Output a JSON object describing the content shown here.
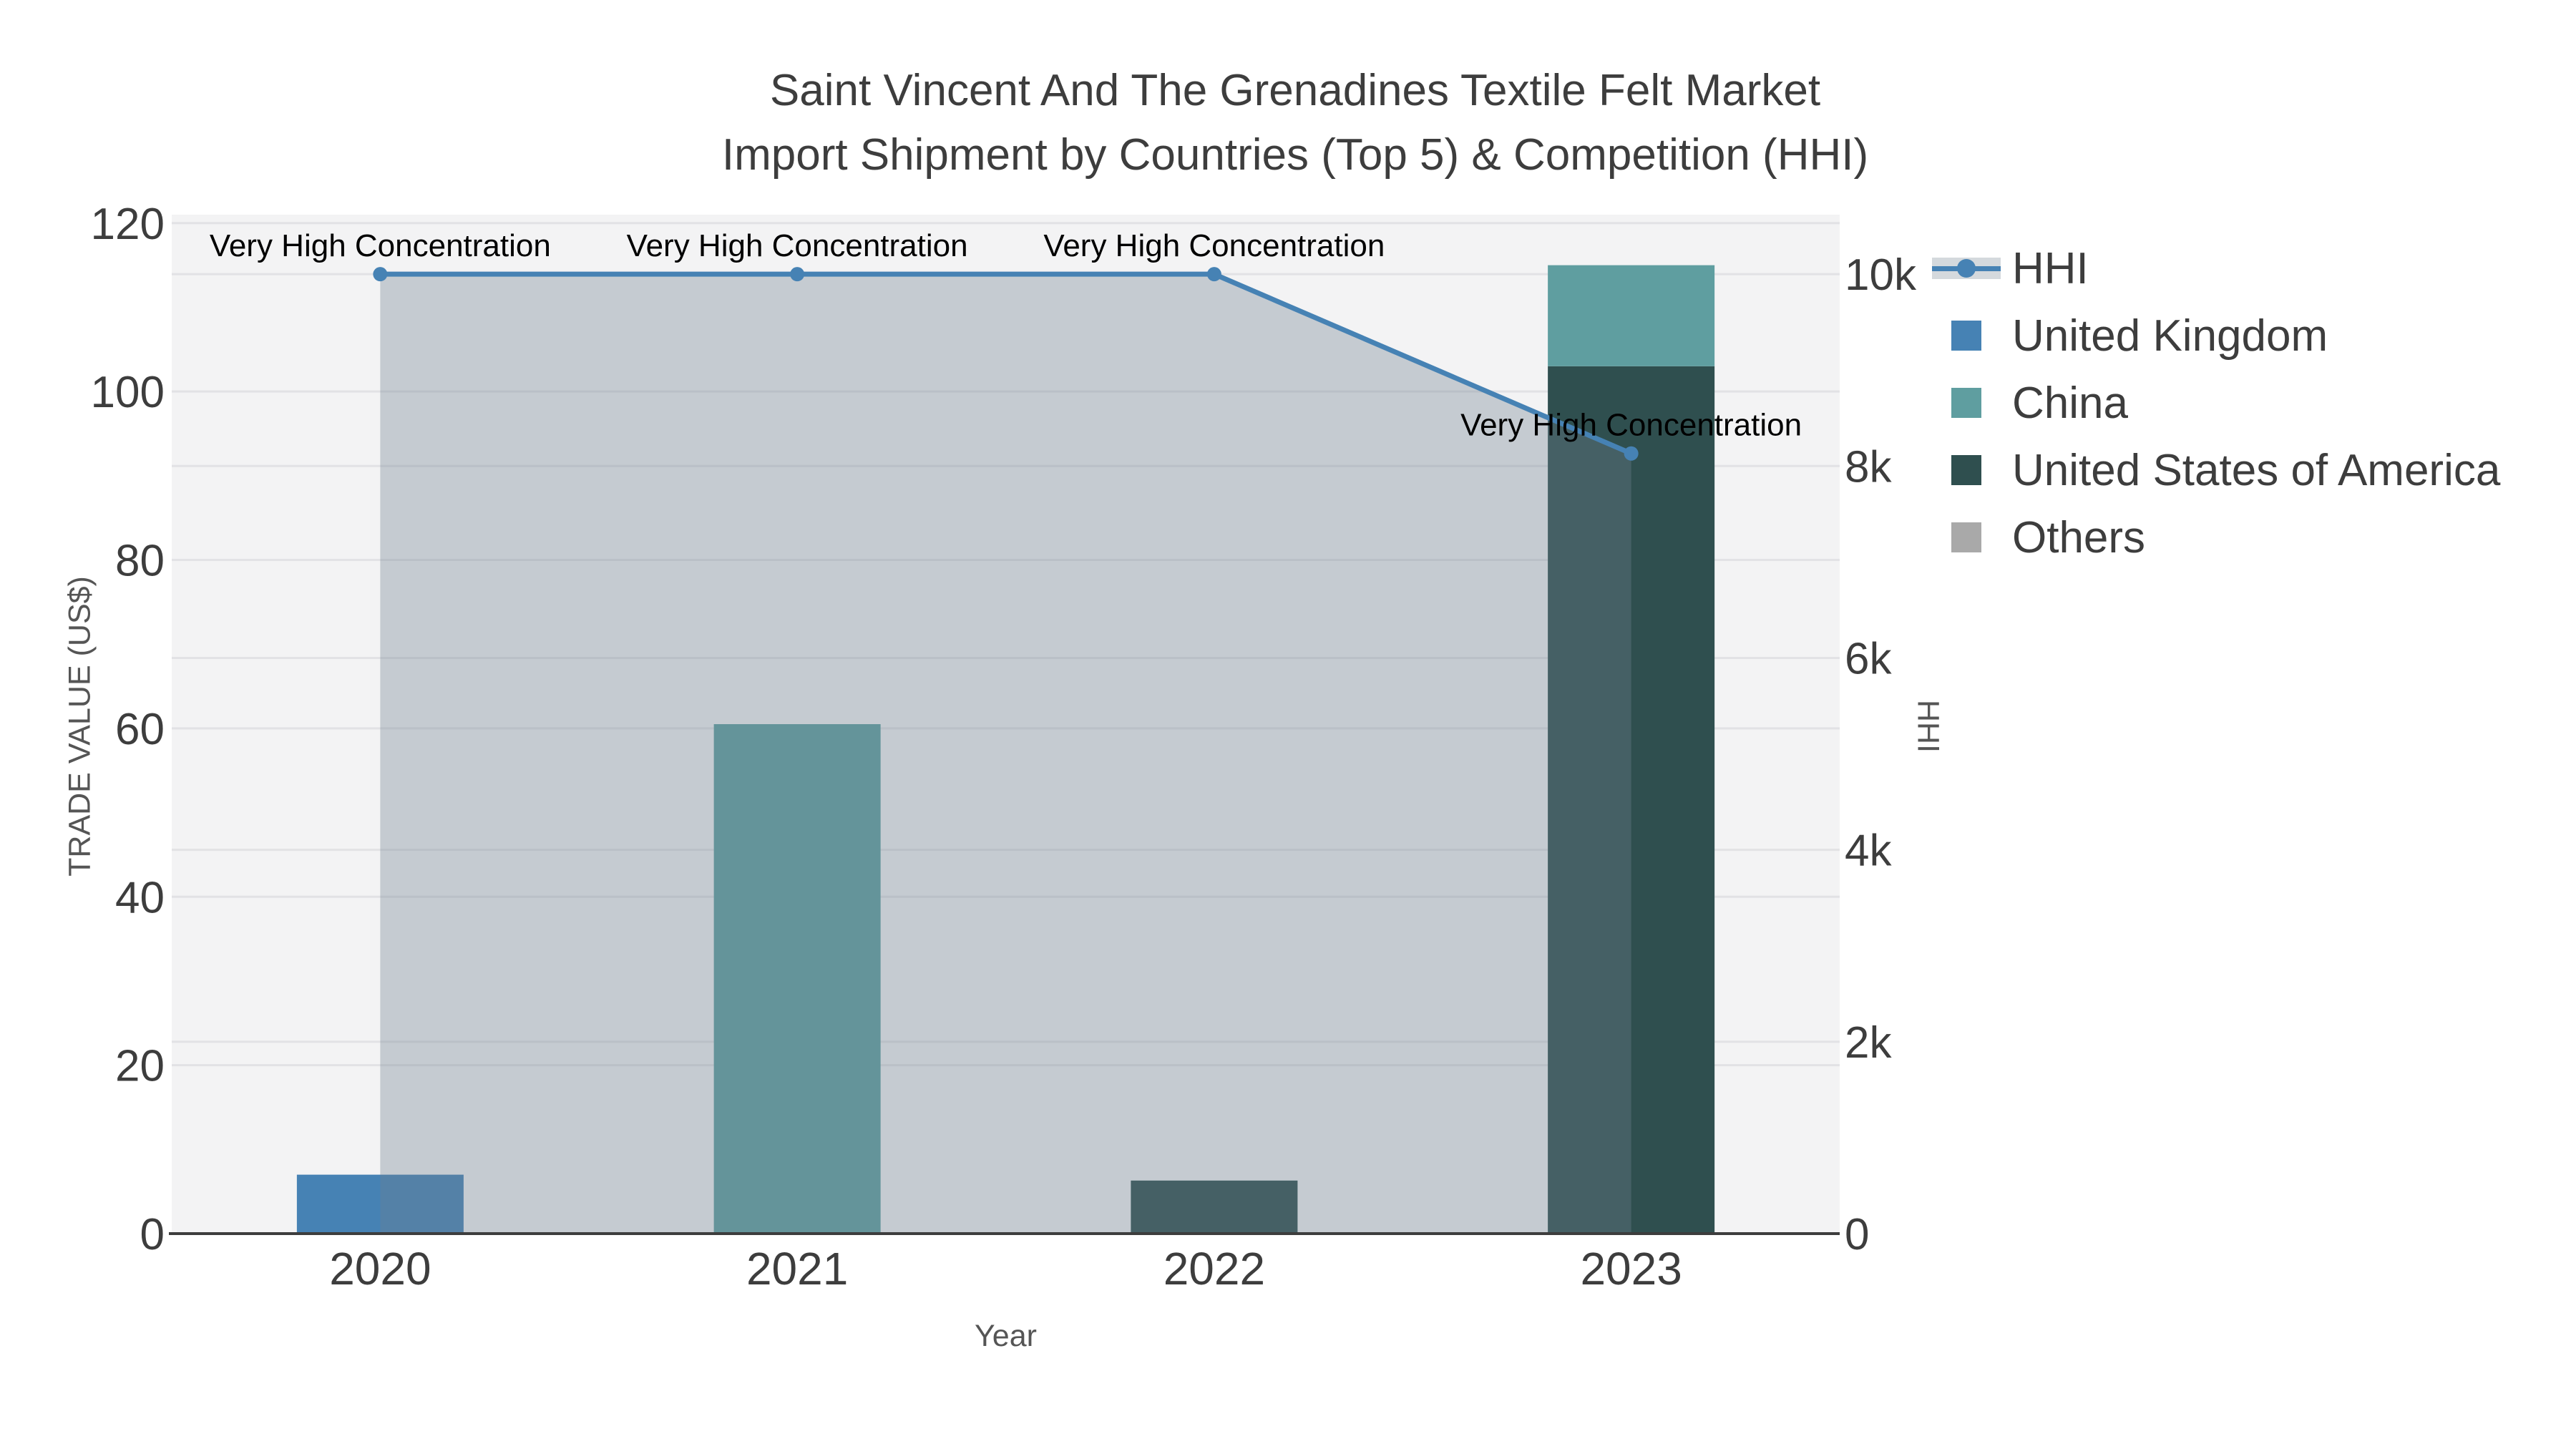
{
  "title": {
    "line1": "Saint Vincent And The Grenadines Textile Felt Market",
    "line2": "Import Shipment by Countries (Top 5) & Competition (HHI)"
  },
  "chart_data": {
    "type": "bar",
    "variant": "stacked-bars-with-line-on-secondary-axis",
    "categories": [
      "2020",
      "2021",
      "2022",
      "2023"
    ],
    "series": [
      {
        "name": "United Kingdom",
        "color": "#4682B4",
        "values": [
          7,
          0,
          0,
          0
        ]
      },
      {
        "name": "China",
        "color": "#5F9EA0",
        "values": [
          0,
          60.5,
          0,
          12
        ]
      },
      {
        "name": "United States of America",
        "color": "#2F4F4F",
        "values": [
          0,
          0,
          6.3,
          103
        ]
      },
      {
        "name": "Others",
        "color": "#A9A9A9",
        "values": [
          0,
          0,
          0,
          0
        ]
      }
    ],
    "line_series": {
      "name": "HHI",
      "axis": "right",
      "color": "#4682B4",
      "area_fill": "rgba(112,128,144,0.35)",
      "values": [
        10000,
        10000,
        10000,
        8131
      ],
      "point_label": "Very High Concentration"
    },
    "x_axis": {
      "label": "Year"
    },
    "left_axis": {
      "label": "TRADE VALUE (US$)",
      "ticks": [
        0,
        20,
        40,
        60,
        80,
        100,
        120
      ],
      "max": 121
    },
    "right_axis": {
      "label": "HHI",
      "tick_values": [
        0,
        2000,
        4000,
        6000,
        8000,
        10000
      ],
      "tick_labels": [
        "0",
        "2k",
        "4k",
        "6k",
        "8k",
        "10k"
      ],
      "max": 10620
    },
    "legend_position": "right",
    "grid": true,
    "colors": {
      "plot_bg": "#f3f3f4",
      "grid": "#e2e2e5",
      "axis_line": "#3d3d3d",
      "tick_text": "#3d3d3d",
      "axis_title_text": "#555555",
      "annotation_text": "#000000"
    }
  }
}
